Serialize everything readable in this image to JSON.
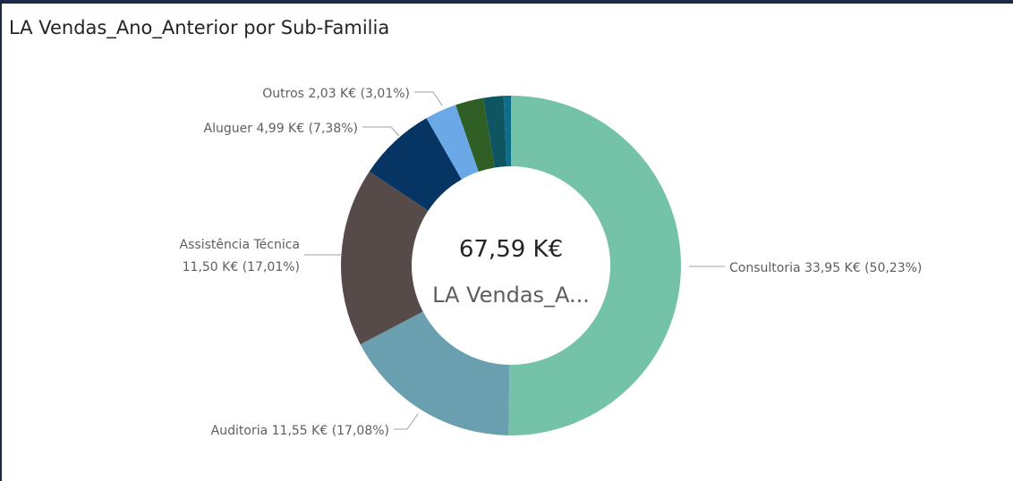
{
  "chart_data": {
    "type": "donut",
    "title": "LA Vendas_Ano_Anterior por Sub-Familia",
    "categories": [
      "Consultoria",
      "Auditoria",
      "Assistência Técnica",
      "Aluguer",
      "Outros",
      null,
      null,
      null
    ],
    "values": [
      33.95,
      11.55,
      11.5,
      4.99,
      2.03,
      1.8,
      1.3,
      0.47
    ],
    "value_labels": [
      "33,95 K€ (50,23%)",
      "11,55 K€ (17,08%)",
      "11,50 K€ (17,01%)",
      "4,99 K€ (7,38%)",
      "2,03 K€ (3,01%)",
      null,
      null,
      null
    ],
    "colors": [
      "#74c2a8",
      "#6a9fb0",
      "#574b4a",
      "#063564",
      "#6aa8e8",
      "#2f5f25",
      "#0f5561",
      "#0e6e8a"
    ],
    "total": {
      "value": 67.59,
      "label": "67,59 K€"
    },
    "center_text": "LA Vendas_A..."
  }
}
